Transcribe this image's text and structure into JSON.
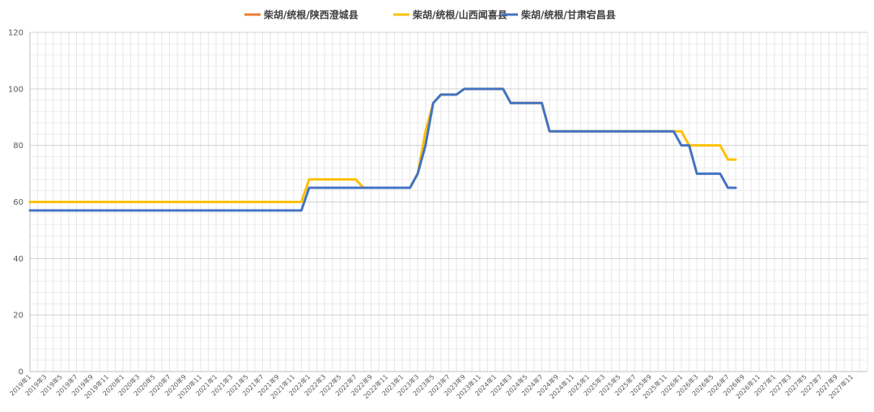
{
  "chart_data": {
    "type": "line",
    "title": "",
    "xlabel": "",
    "ylabel": "",
    "ylim": [
      0,
      120
    ],
    "yticks": [
      0,
      20,
      40,
      60,
      80,
      100,
      120
    ],
    "grid": true,
    "legend_position": "top",
    "x_start": "2019年1",
    "x_tick_labels": [
      "2019年1",
      "2019年3",
      "2019年5",
      "2019年7",
      "2019年9",
      "2019年11",
      "2020年1",
      "2020年3",
      "2020年5",
      "2020年7",
      "2020年9",
      "2020年11",
      "2021年1",
      "2021年3",
      "2021年5",
      "2021年7",
      "2021年9",
      "2021年11",
      "2022年1",
      "2022年3",
      "2022年5",
      "2022年7",
      "2022年9",
      "2022年11",
      "2023年1",
      "2023年3",
      "2023年5",
      "2023年7",
      "2023年9",
      "2023年11",
      "2024年1",
      "2024年3",
      "2024年5",
      "2024年7",
      "2024年9",
      "2024年11",
      "2025年1",
      "2025年3",
      "2025年5",
      "2025年7",
      "2025年9",
      "2025年11",
      "2026年1",
      "2026年3",
      "2026年5",
      "2026年7",
      "2026年9",
      "2026年11",
      "2027年1",
      "2027年3",
      "2027年5",
      "2027年7",
      "2027年9",
      "2027年11"
    ],
    "series": [
      {
        "name": "柴胡/统根/陕西澄城县",
        "color": "#ED7D31",
        "values": [
          60,
          60,
          60,
          60,
          60,
          60,
          60,
          60,
          60,
          60,
          60,
          60,
          60,
          60,
          60,
          60,
          60,
          60,
          60
        ]
      },
      {
        "name": "柴胡/统根/山西闻喜县",
        "color": "#FFC000",
        "values": [
          60,
          60,
          60,
          60,
          60,
          60,
          60,
          60,
          60,
          60,
          60,
          60,
          60,
          60,
          60,
          60,
          60,
          60,
          60,
          60,
          60,
          60,
          60,
          60,
          60,
          60,
          60,
          60,
          60,
          60,
          60,
          60,
          60,
          60,
          60,
          60,
          68,
          68,
          68,
          68,
          68,
          68,
          68,
          65,
          65,
          65,
          65,
          65,
          65,
          65,
          70,
          85,
          95,
          98,
          98,
          98,
          100,
          100,
          100,
          100,
          100,
          100,
          95,
          95,
          95,
          95,
          95,
          85,
          85,
          85,
          85,
          85,
          85,
          85,
          85,
          85,
          85,
          85,
          85,
          85,
          85,
          85,
          85,
          85,
          85,
          80,
          80,
          80,
          80,
          80,
          75,
          75
        ]
      },
      {
        "name": "柴胡/统根/甘肃宕昌县",
        "color": "#4472C4",
        "values": [
          57,
          57,
          57,
          57,
          57,
          57,
          57,
          57,
          57,
          57,
          57,
          57,
          57,
          57,
          57,
          57,
          57,
          57,
          57,
          57,
          57,
          57,
          57,
          57,
          57,
          57,
          57,
          57,
          57,
          57,
          57,
          57,
          57,
          57,
          57,
          57,
          65,
          65,
          65,
          65,
          65,
          65,
          65,
          65,
          65,
          65,
          65,
          65,
          65,
          65,
          70,
          80,
          95,
          98,
          98,
          98,
          100,
          100,
          100,
          100,
          100,
          100,
          95,
          95,
          95,
          95,
          95,
          85,
          85,
          85,
          85,
          85,
          85,
          85,
          85,
          85,
          85,
          85,
          85,
          85,
          85,
          85,
          85,
          85,
          80,
          80,
          70,
          70,
          70,
          70,
          65,
          65
        ]
      }
    ]
  }
}
